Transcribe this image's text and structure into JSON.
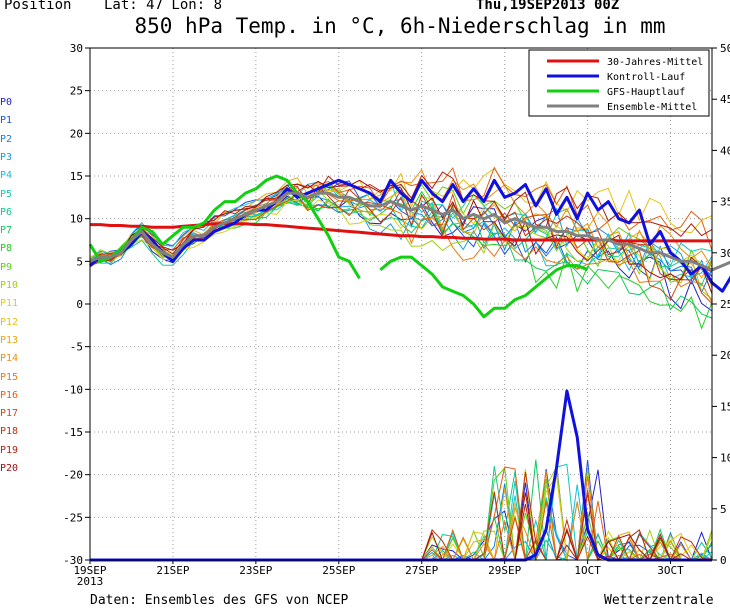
{
  "header": {
    "position_label": "Position",
    "lat_lon": "Lat: 47 Lon: 8",
    "run": "Thu,19SEP2013 00Z",
    "title": "850 hPa Temp. in °C, 6h-Niederschlag in mm"
  },
  "members": [
    "P0",
    "P1",
    "P2",
    "P3",
    "P4",
    "P5",
    "P6",
    "P7",
    "P8",
    "P9",
    "P10",
    "P11",
    "P12",
    "P13",
    "P14",
    "P15",
    "P16",
    "P17",
    "P18",
    "P19",
    "P20"
  ],
  "member_colors": [
    "#2020d0",
    "#2050e0",
    "#1080e0",
    "#10a0e0",
    "#10c0e0",
    "#10c8c0",
    "#10c890",
    "#10c860",
    "#20d020",
    "#60d010",
    "#a0d010",
    "#d8d010",
    "#e8c010",
    "#e8a810",
    "#e89010",
    "#e87810",
    "#e06010",
    "#d04810",
    "#c03010",
    "#b02010",
    "#a01010"
  ],
  "legend": [
    {
      "label": "30-Jahres-Mittel",
      "color": "#e01010"
    },
    {
      "label": "Kontroll-Lauf",
      "color": "#1010e0"
    },
    {
      "label": "GFS-Hauptlauf",
      "color": "#10d010"
    },
    {
      "label": "Ensemble-Mittel",
      "color": "#808080"
    }
  ],
  "footer": {
    "left": "Daten: Ensembles des GFS von NCEP",
    "right": "Wetterzentrale"
  },
  "chart_data": {
    "type": "line",
    "title": "850 hPa Temp. in °C, 6h-Niederschlag in mm",
    "x_tick_labels": [
      "19SEP",
      "21SEP",
      "23SEP",
      "25SEP",
      "27SEP",
      "29SEP",
      "1OCT",
      "3OCT"
    ],
    "x_tick_sublabel": "2013",
    "x_range": [
      "19SEP2013 00Z",
      "4OCT2013 00Z"
    ],
    "time_step_hours": 6,
    "y_left": {
      "unit": "°C",
      "range": [
        -30,
        30
      ],
      "ticks": [
        30,
        25,
        20,
        15,
        10,
        5,
        0,
        -5,
        -10,
        -15,
        -20,
        -25,
        -30
      ]
    },
    "y_right": {
      "unit": "mm",
      "range": [
        0,
        50
      ],
      "ticks": [
        50,
        45,
        40,
        35,
        30,
        25,
        20,
        15,
        10,
        5,
        0
      ]
    },
    "grid": true,
    "legend_position": "top-right",
    "series": [
      {
        "name": "30-Jahres-Mittel",
        "axis": "left",
        "values": [
          9.3,
          9.3,
          9.2,
          9.2,
          9.1,
          9.1,
          9.0,
          9.0,
          9.0,
          9.1,
          9.2,
          9.3,
          9.4,
          9.4,
          9.4,
          9.4,
          9.3,
          9.3,
          9.2,
          9.1,
          9.0,
          8.9,
          8.8,
          8.7,
          8.6,
          8.5,
          8.4,
          8.3,
          8.2,
          8.1,
          8.0,
          8.0,
          7.9,
          7.9,
          7.8,
          7.8,
          7.7,
          7.7,
          7.6,
          7.6,
          7.6,
          7.5,
          7.5,
          7.5,
          7.5,
          7.5,
          7.5,
          7.5,
          7.5,
          7.5,
          7.5,
          7.4,
          7.4,
          7.4,
          7.4,
          7.4,
          7.4,
          7.4,
          7.4,
          7.4,
          7.4
        ]
      },
      {
        "name": "Kontroll-Lauf",
        "axis": "left",
        "values": [
          4.5,
          5.5,
          5.5,
          6.0,
          7.0,
          8.5,
          7.5,
          6.0,
          5.0,
          6.5,
          7.5,
          7.5,
          8.5,
          9.0,
          9.5,
          10.5,
          11.0,
          11.0,
          12.0,
          13.5,
          12.5,
          13.0,
          13.5,
          14.0,
          14.5,
          14.0,
          13.5,
          13.0,
          12.0,
          14.5,
          13.0,
          12.0,
          14.5,
          13.0,
          12.0,
          14.0,
          12.0,
          13.5,
          12.0,
          14.5,
          12.5,
          13.0,
          14.0,
          11.5,
          13.5,
          10.5,
          12.5,
          10.0,
          13.0,
          11.0,
          12.0,
          10.0,
          9.5,
          11.0,
          7.0,
          8.5,
          6.0,
          5.0,
          3.5,
          4.5,
          2.5,
          1.5,
          3.5
        ]
      },
      {
        "name": "GFS-Hauptlauf",
        "axis": "left",
        "values": [
          7.0,
          5.0,
          5.5,
          6.5,
          7.5,
          9.0,
          8.5,
          7.0,
          8.0,
          9.0,
          9.0,
          9.5,
          11.0,
          12.0,
          12.0,
          13.0,
          13.5,
          14.5,
          15.0,
          14.5,
          13.0,
          12.0,
          10.0,
          8.0,
          5.5,
          5.0,
          3.0,
          null,
          4.0,
          5.0,
          5.5,
          5.5,
          4.5,
          3.5,
          2.0,
          1.5,
          1.0,
          0.0,
          -1.5,
          -0.5,
          -0.5,
          0.5,
          1.0,
          2.0,
          3.0,
          4.0,
          4.5,
          4.5,
          4.0
        ]
      },
      {
        "name": "Ensemble-Mittel",
        "axis": "left",
        "values": [
          5.0,
          5.5,
          5.5,
          6.0,
          7.5,
          8.5,
          7.0,
          6.0,
          5.5,
          7.0,
          8.0,
          8.0,
          9.0,
          9.5,
          10.0,
          10.5,
          11.0,
          11.5,
          12.0,
          13.0,
          13.0,
          12.5,
          13.0,
          13.0,
          12.5,
          12.5,
          12.0,
          11.5,
          11.5,
          12.0,
          11.5,
          11.0,
          11.5,
          11.0,
          10.5,
          11.0,
          10.0,
          10.5,
          10.0,
          10.5,
          9.5,
          10.0,
          9.5,
          9.0,
          9.0,
          8.5,
          8.5,
          8.0,
          8.0,
          7.5,
          7.5,
          7.0,
          7.0,
          6.5,
          6.0,
          6.0,
          5.5,
          5.0,
          5.0,
          4.5,
          4.0,
          4.5,
          5.0
        ]
      },
      {
        "name": "Kontroll-Lauf Niederschlag",
        "axis": "right",
        "values": [
          0,
          0,
          0,
          0,
          0,
          0,
          0,
          0,
          0,
          0,
          0,
          0,
          0,
          0,
          0,
          0,
          0,
          0,
          0,
          0,
          0,
          0,
          0,
          0,
          0,
          0,
          0,
          0,
          0,
          0,
          0,
          0,
          0,
          0,
          0,
          0,
          0,
          0,
          0,
          0,
          0,
          0,
          0,
          0.5,
          3.0,
          9.0,
          16.5,
          12.0,
          3.0,
          0.5,
          0,
          0,
          0,
          0,
          0,
          0,
          0,
          0,
          0,
          0,
          0
        ]
      }
    ]
  }
}
